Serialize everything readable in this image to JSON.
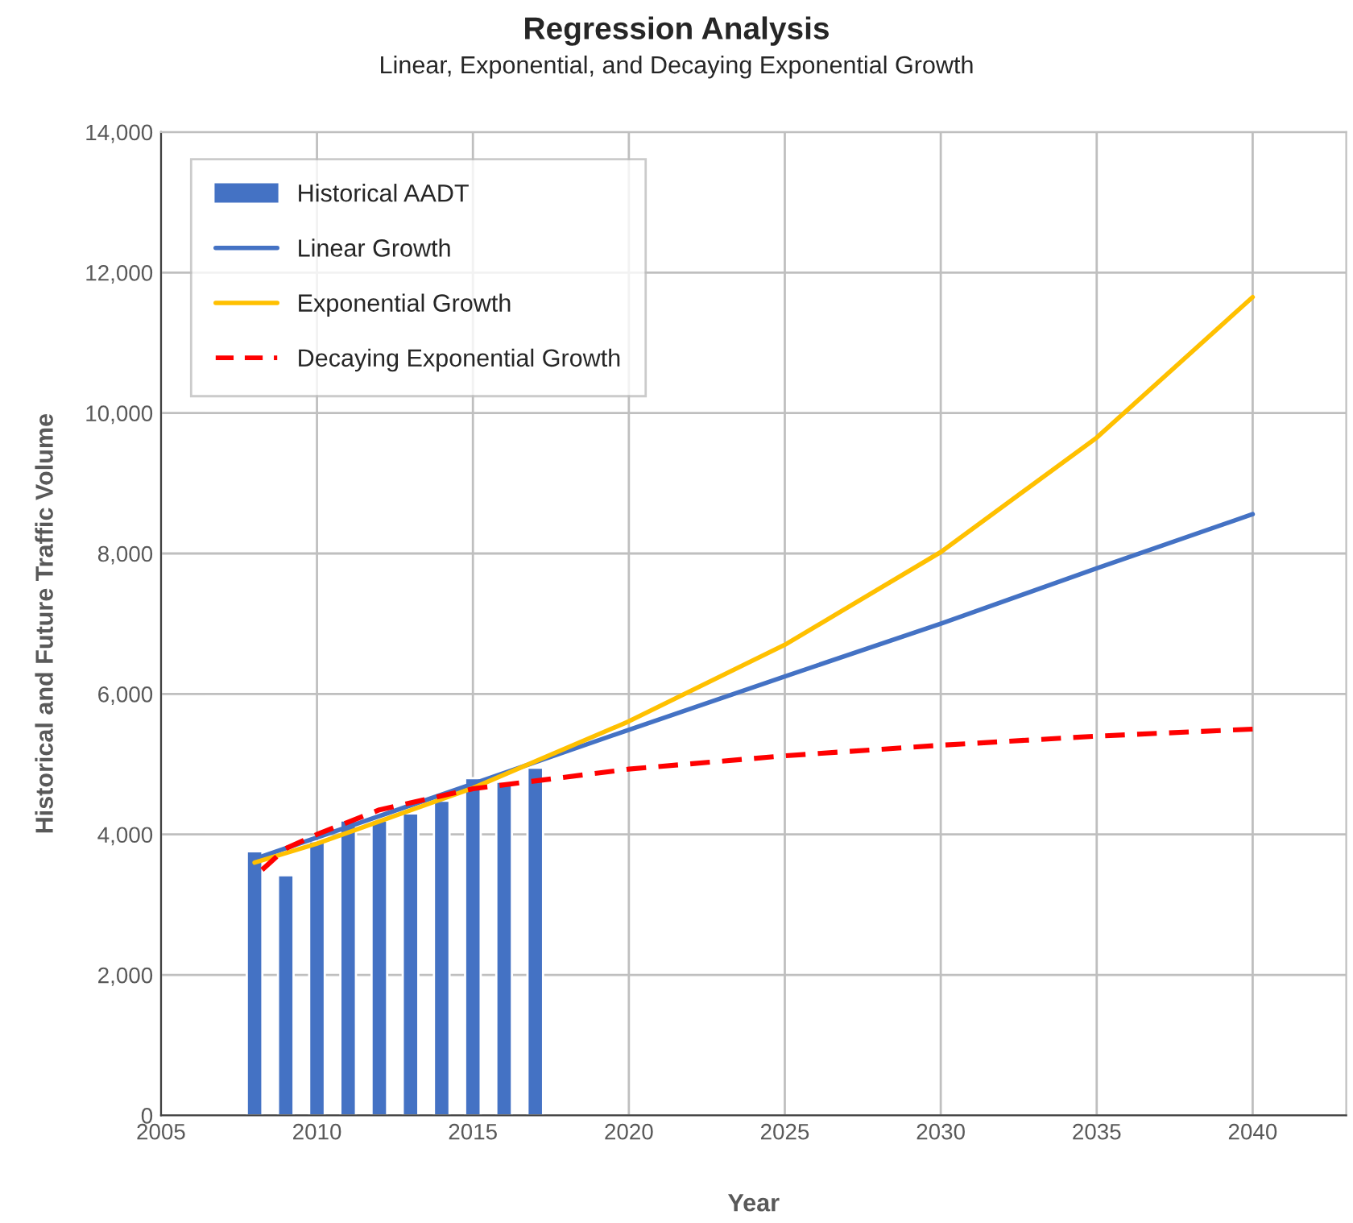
{
  "chart_data": {
    "type": "line",
    "title": "Regression Analysis",
    "subtitle": "Linear, Exponential, and Decaying Exponential Growth",
    "xlabel": "Year",
    "ylabel": "Historical and Future Traffic Volume",
    "series": [
      {
        "name": "Historical AADT",
        "type": "bar",
        "color": "#4472c4",
        "x": [
          2008,
          2009,
          2010,
          2011,
          2012,
          2013,
          2014,
          2015,
          2016,
          2017
        ],
        "values": [
          3760,
          3420,
          3900,
          4200,
          4200,
          4300,
          4480,
          4800,
          4750,
          4950
        ]
      },
      {
        "name": "Linear Growth",
        "color": "#4472c4",
        "line_style": "solid",
        "x": [
          2008,
          2015,
          2020,
          2025,
          2030,
          2035,
          2040
        ],
        "values": [
          3650,
          4720,
          5490,
          6250,
          7000,
          7790,
          8560
        ]
      },
      {
        "name": "Exponential Growth",
        "color": "#ffc000",
        "line_style": "solid",
        "x": [
          2008,
          2010,
          2015,
          2020,
          2025,
          2030,
          2035,
          2040
        ],
        "values": [
          3600,
          3870,
          4660,
          5610,
          6700,
          8020,
          9650,
          11650
        ]
      },
      {
        "name": "Decaying Exponential Growth",
        "color": "#ff0000",
        "line_style": "dashed",
        "x": [
          2008,
          2009,
          2010,
          2012,
          2015,
          2020,
          2025,
          2030,
          2035,
          2040
        ],
        "values": [
          3400,
          3800,
          4000,
          4350,
          4650,
          4930,
          5120,
          5270,
          5400,
          5500
        ]
      }
    ],
    "xlim": [
      2005,
      2043
    ],
    "xticks": [
      2005,
      2010,
      2015,
      2020,
      2025,
      2030,
      2035,
      2040
    ],
    "ylim": [
      0,
      14000
    ],
    "yticks": [
      {
        "value": 0,
        "label": "0"
      },
      {
        "value": 2000,
        "label": "2,000"
      },
      {
        "value": 4000,
        "label": "4,000"
      },
      {
        "value": 6000,
        "label": "6,000"
      },
      {
        "value": 8000,
        "label": "8,000"
      },
      {
        "value": 10000,
        "label": "10,000"
      },
      {
        "value": 12000,
        "label": "12,000"
      },
      {
        "value": 14000,
        "label": "14,000"
      }
    ],
    "grid": true,
    "legend": "top left"
  }
}
